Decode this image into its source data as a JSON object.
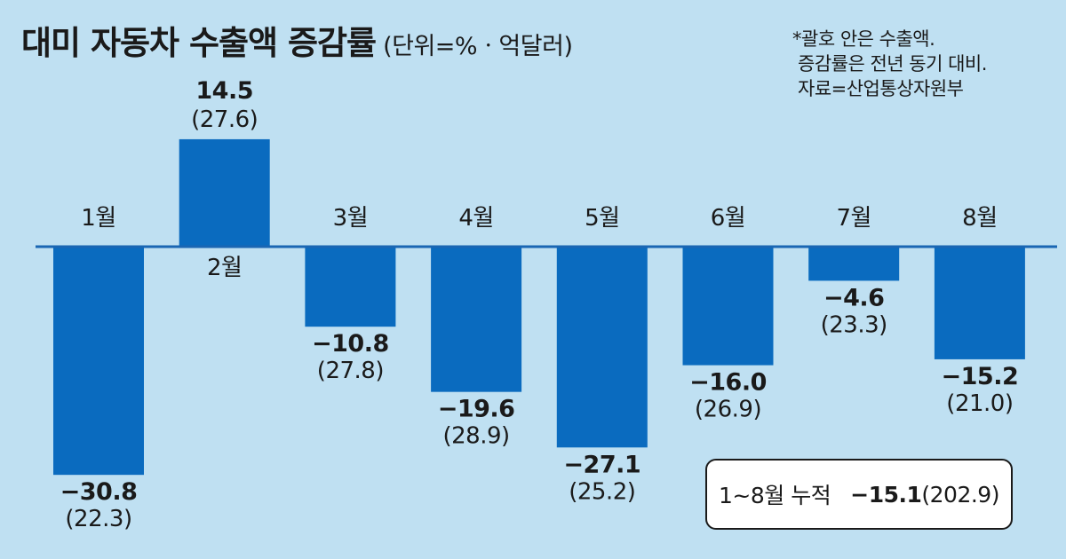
{
  "title": "대미 자동차 수출액 증감률",
  "unit": "(단위=%ㆍ억달러)",
  "notes": [
    "*괄호 안은 수출액.",
    "증감률은 전년 동기 대비.",
    "자료=산업통상자원부"
  ],
  "summary": {
    "label": "1~8월 누적",
    "value": "−15.1",
    "paren": "(202.9)"
  },
  "colors": {
    "bar": "#0a6bbf",
    "background": "#bfe0f2",
    "axis": "#1a66b3"
  },
  "chart_data": {
    "type": "bar",
    "categories": [
      "1월",
      "2월",
      "3월",
      "4월",
      "5월",
      "6월",
      "7월",
      "8월"
    ],
    "series": [
      {
        "values": [
          -30.8,
          14.5,
          -10.8,
          -19.6,
          -27.1,
          -16.0,
          -4.6,
          -15.2
        ]
      }
    ],
    "value_labels": [
      "−30.8",
      "14.5",
      "−10.8",
      "−19.6",
      "−27.1",
      "−16.0",
      "−4.6",
      "−15.2"
    ],
    "amounts": [
      "(22.3)",
      "(27.6)",
      "(27.8)",
      "(28.9)",
      "(25.2)",
      "(26.9)",
      "(23.3)",
      "(21.0)"
    ],
    "grid": false,
    "legend": "none"
  }
}
